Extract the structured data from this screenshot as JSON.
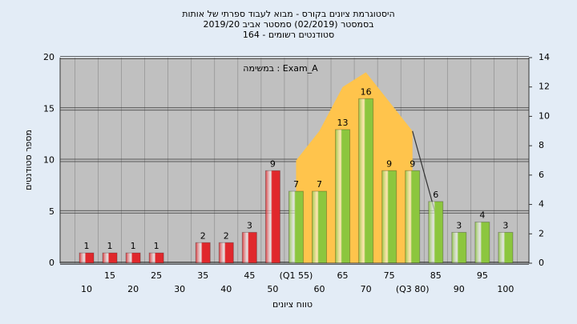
{
  "chart_data": {
    "type": "bar",
    "title": "היסטוגרמת ציונים בקורס - מבוא לעבוד ספרתי של אותות",
    "subtitle": "בסמסטר  (02/2019)  סמסטר אביב 2019/20",
    "subtitle2": "סטודנטים רשומים - 164",
    "annotation": "במשימה : Exam_A",
    "y_label": "מספר סטודנטים",
    "x_label": "טווח ציונים",
    "categories": [
      "10",
      "15",
      "20",
      "25",
      "30",
      "35",
      "40",
      "45",
      "50",
      "(Q1 55)",
      "60",
      "65",
      "70",
      "75",
      "(Q3 80)",
      "85",
      "90",
      "95",
      "100"
    ],
    "values": [
      1,
      1,
      1,
      1,
      null,
      2,
      2,
      3,
      9,
      7,
      7,
      13,
      16,
      9,
      9,
      6,
      3,
      4,
      3
    ],
    "colors": [
      "#e0282c",
      "#e0282c",
      "#e0282c",
      "#e0282c",
      "#e0282c",
      "#e0282c",
      "#e0282c",
      "#e0282c",
      "#e0282c",
      "#8cc63e",
      "#8cc63e",
      "#8cc63e",
      "#8cc63e",
      "#8cc63e",
      "#8cc63e",
      "#8cc63e",
      "#8cc63e",
      "#8cc63e",
      "#8cc63e"
    ],
    "ylim": [
      0,
      20
    ],
    "yticks": [
      0,
      5,
      10,
      15,
      20
    ],
    "y2lim": [
      0,
      14
    ],
    "y2ticks": [
      0,
      2,
      4,
      6,
      8,
      10,
      12,
      14
    ],
    "series": [
      {
        "type": "area",
        "axis": "y2",
        "color": "#ffc44c",
        "values": [
          null,
          null,
          null,
          null,
          null,
          null,
          null,
          null,
          null,
          7,
          9,
          12,
          13,
          11,
          9,
          null,
          null,
          null,
          null
        ]
      },
      {
        "type": "line",
        "axis": "y2",
        "color": "#333333",
        "values": [
          null,
          null,
          null,
          null,
          null,
          null,
          null,
          null,
          null,
          null,
          null,
          null,
          null,
          null,
          9,
          3.3,
          null,
          null,
          null
        ]
      }
    ],
    "grid": true
  }
}
